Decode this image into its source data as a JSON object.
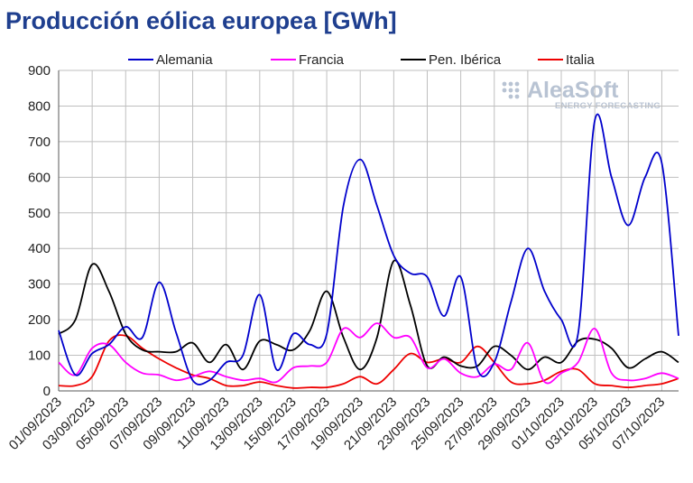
{
  "colors": {
    "title": "#1f3f8f",
    "grid": "#bfbfbf",
    "axis": "#595959",
    "logo": "#b8c3d3"
  },
  "logo": {
    "main": "AleaSoft",
    "sub": "ENERGY FORECASTING"
  },
  "chart_data": {
    "type": "line",
    "title": "Producción eólica europea [GWh]",
    "xlabel": "",
    "ylabel": "",
    "ylim": [
      0,
      900
    ],
    "yticks": [
      0,
      100,
      200,
      300,
      400,
      500,
      600,
      700,
      800,
      900
    ],
    "grid": true,
    "legend_position": "top",
    "categories": [
      "01/09/2023",
      "02/09/2023",
      "03/09/2023",
      "04/09/2023",
      "05/09/2023",
      "06/09/2023",
      "07/09/2023",
      "08/09/2023",
      "09/09/2023",
      "10/09/2023",
      "11/09/2023",
      "12/09/2023",
      "13/09/2023",
      "14/09/2023",
      "15/09/2023",
      "16/09/2023",
      "17/09/2023",
      "18/09/2023",
      "19/09/2023",
      "20/09/2023",
      "21/09/2023",
      "22/09/2023",
      "23/09/2023",
      "24/09/2023",
      "25/09/2023",
      "26/09/2023",
      "27/09/2023",
      "28/09/2023",
      "29/09/2023",
      "30/09/2023",
      "01/10/2023",
      "02/10/2023",
      "03/10/2023",
      "04/10/2023",
      "05/10/2023",
      "06/10/2023",
      "07/10/2023",
      "08/10/2023"
    ],
    "x_tick_labels": [
      "01/09/2023",
      "03/09/2023",
      "05/09/2023",
      "07/09/2023",
      "09/09/2023",
      "11/09/2023",
      "13/09/2023",
      "15/09/2023",
      "17/09/2023",
      "19/09/2023",
      "21/09/2023",
      "23/09/2023",
      "25/09/2023",
      "27/09/2023",
      "29/09/2023",
      "01/10/2023",
      "03/10/2023",
      "05/10/2023",
      "07/10/2023"
    ],
    "series": [
      {
        "name": "Alemania",
        "color": "#0000cc",
        "values": [
          170,
          45,
          105,
          130,
          180,
          150,
          305,
          165,
          30,
          30,
          80,
          100,
          270,
          60,
          160,
          130,
          160,
          520,
          650,
          520,
          380,
          330,
          320,
          210,
          320,
          60,
          80,
          250,
          400,
          280,
          200,
          160,
          760,
          600,
          465,
          600,
          640,
          155
        ]
      },
      {
        "name": "Francia",
        "color": "#ff00ff",
        "values": [
          80,
          45,
          120,
          130,
          80,
          50,
          45,
          30,
          40,
          55,
          40,
          30,
          35,
          25,
          65,
          70,
          80,
          175,
          150,
          190,
          150,
          150,
          65,
          90,
          50,
          40,
          75,
          60,
          135,
          25,
          50,
          80,
          175,
          50,
          30,
          35,
          50,
          35
        ]
      },
      {
        "name": "Pen. Ibérica",
        "color": "#000000",
        "values": [
          160,
          200,
          355,
          280,
          160,
          115,
          110,
          110,
          135,
          80,
          130,
          60,
          140,
          130,
          115,
          170,
          280,
          150,
          60,
          150,
          365,
          240,
          70,
          95,
          70,
          70,
          125,
          100,
          60,
          95,
          80,
          140,
          145,
          120,
          65,
          90,
          110,
          80
        ]
      },
      {
        "name": "Italia",
        "color": "#ee0000",
        "values": [
          15,
          15,
          40,
          140,
          155,
          120,
          90,
          65,
          45,
          35,
          15,
          15,
          25,
          15,
          8,
          10,
          10,
          20,
          40,
          20,
          60,
          105,
          80,
          90,
          80,
          125,
          80,
          25,
          20,
          30,
          55,
          60,
          20,
          15,
          10,
          15,
          20,
          35
        ]
      }
    ]
  }
}
